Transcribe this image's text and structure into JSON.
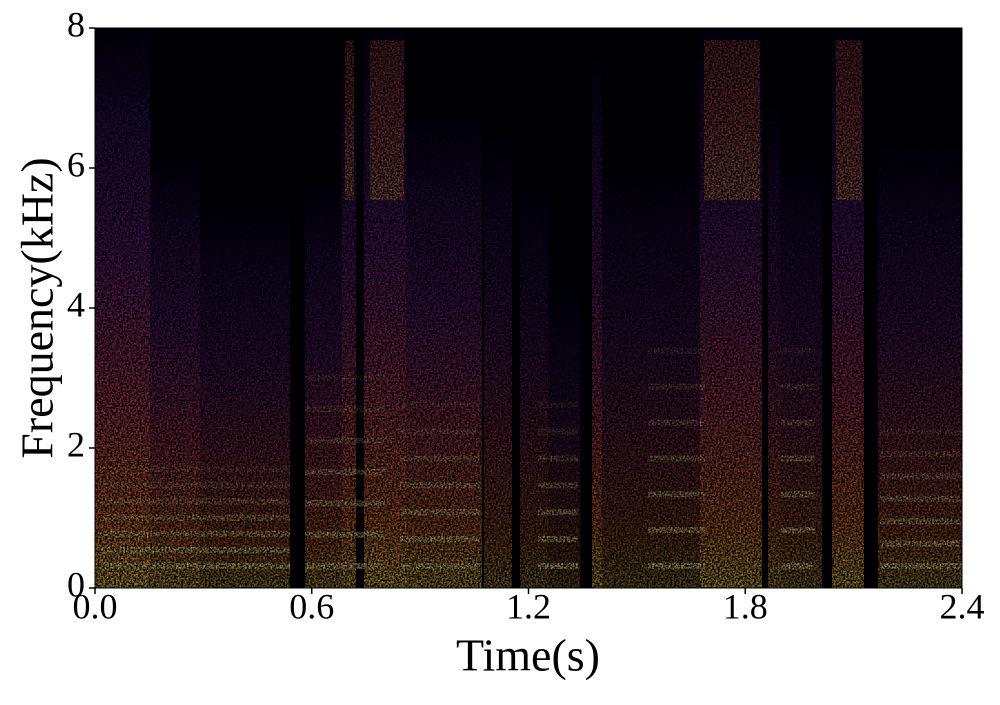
{
  "chart_data": {
    "type": "spectrogram",
    "xlabel": "Time(s)",
    "ylabel": "Frequency(kHz)",
    "xlim": [
      0,
      2.4
    ],
    "xticks": [
      {
        "value": 0,
        "label": "0.0"
      },
      0.6,
      1.2,
      1.8,
      2.4
    ],
    "ylim": [
      0,
      8
    ],
    "yticks": [
      0,
      2,
      4,
      6,
      8
    ]
  }
}
